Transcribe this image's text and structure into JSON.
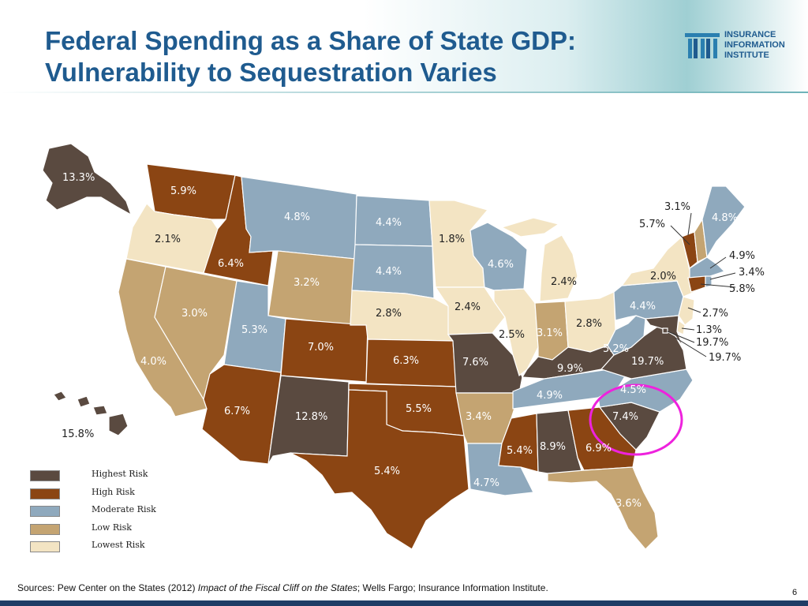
{
  "title": {
    "line1": "Federal Spending as a Share of State GDP:",
    "line2": "Vulnerability to Sequestration Varies"
  },
  "logo": {
    "icon": "iii-logo-icon",
    "line1": "INSURANCE",
    "line2": "INFORMATION",
    "line3": "INSTITUTE"
  },
  "colors": {
    "highest_risk": "#5a4a40",
    "high_risk": "#8b4513",
    "moderate_risk": "#8fa9bd",
    "low_risk": "#c4a472",
    "lowest_risk": "#f3e4c3",
    "title": "#1f5b8f",
    "highlight_circle": "#ee22dd"
  },
  "legend": [
    {
      "label": "Highest Risk",
      "color": "#5a4a40"
    },
    {
      "label": "High Risk",
      "color": "#8b4513"
    },
    {
      "label": "Moderate Risk",
      "color": "#8fa9bd"
    },
    {
      "label": "Low Risk",
      "color": "#c4a472"
    },
    {
      "label": "Lowest Risk",
      "color": "#f3e4c3"
    }
  ],
  "states": {
    "AK": {
      "value": "13.3%",
      "risk": "highest"
    },
    "HI": {
      "value": "15.8%",
      "risk": "highest"
    },
    "WA": {
      "value": "5.9%",
      "risk": "high"
    },
    "OR": {
      "value": "2.1%",
      "risk": "lowest"
    },
    "CA": {
      "value": "4.0%",
      "risk": "low"
    },
    "NV": {
      "value": "3.0%",
      "risk": "low"
    },
    "ID": {
      "value": "6.4%",
      "risk": "high"
    },
    "MT": {
      "value": "4.8%",
      "risk": "moderate"
    },
    "WY": {
      "value": "3.2%",
      "risk": "low"
    },
    "UT": {
      "value": "5.3%",
      "risk": "moderate"
    },
    "AZ": {
      "value": "6.7%",
      "risk": "high"
    },
    "CO": {
      "value": "7.0%",
      "risk": "high"
    },
    "NM": {
      "value": "12.8%",
      "risk": "highest"
    },
    "ND": {
      "value": "4.4%",
      "risk": "moderate"
    },
    "SD": {
      "value": "4.4%",
      "risk": "moderate"
    },
    "NE": {
      "value": "2.8%",
      "risk": "lowest"
    },
    "KS": {
      "value": "6.3%",
      "risk": "high"
    },
    "OK": {
      "value": "5.5%",
      "risk": "high"
    },
    "TX": {
      "value": "5.4%",
      "risk": "high"
    },
    "MN": {
      "value": "1.8%",
      "risk": "lowest"
    },
    "IA": {
      "value": "2.4%",
      "risk": "lowest"
    },
    "MO": {
      "value": "7.6%",
      "risk": "highest"
    },
    "AR": {
      "value": "3.4%",
      "risk": "low"
    },
    "LA": {
      "value": "4.7%",
      "risk": "moderate"
    },
    "WI": {
      "value": "4.6%",
      "risk": "moderate"
    },
    "IL": {
      "value": "2.5%",
      "risk": "lowest"
    },
    "MI": {
      "value": "2.4%",
      "risk": "lowest"
    },
    "IN": {
      "value": "3.1%",
      "risk": "low"
    },
    "OH": {
      "value": "2.8%",
      "risk": "lowest"
    },
    "KY": {
      "value": "9.9%",
      "risk": "highest"
    },
    "TN": {
      "value": "4.9%",
      "risk": "moderate"
    },
    "MS": {
      "value": "5.4%",
      "risk": "high"
    },
    "AL": {
      "value": "8.9%",
      "risk": "highest"
    },
    "GA": {
      "value": "6.9%",
      "risk": "high"
    },
    "FL": {
      "value": "3.6%",
      "risk": "low"
    },
    "SC": {
      "value": "7.4%",
      "risk": "highest"
    },
    "NC": {
      "value": "4.5%",
      "risk": "moderate"
    },
    "VA": {
      "value": "19.7%",
      "risk": "highest"
    },
    "WV": {
      "value": "5.2%",
      "risk": "moderate"
    },
    "PA": {
      "value": "4.4%",
      "risk": "moderate"
    },
    "NY": {
      "value": "2.0%",
      "risk": "lowest"
    },
    "VT": {
      "value": "5.7%",
      "risk": "high"
    },
    "NH": {
      "value": "3.1%",
      "risk": "low"
    },
    "ME": {
      "value": "4.8%",
      "risk": "moderate"
    },
    "MA": {
      "value": "4.9%",
      "risk": "moderate"
    },
    "RI": {
      "value": "3.4%",
      "risk": "moderate"
    },
    "CT": {
      "value": "5.8%",
      "risk": "high"
    },
    "NJ": {
      "value": "2.7%",
      "risk": "lowest"
    },
    "DE": {
      "value": "1.3%",
      "risk": "lowest"
    },
    "MD": {
      "value": "19.7%",
      "risk": "highest"
    },
    "DC": {
      "value": "19.7%",
      "risk": "highest"
    }
  },
  "footer": {
    "prefix": "Sources: Pew Center on the States (2012)  ",
    "italic": "Impact of the Fiscal Cliff on the States",
    "suffix": "; Wells Fargo; Insurance Information Institute."
  },
  "page_number": "6"
}
